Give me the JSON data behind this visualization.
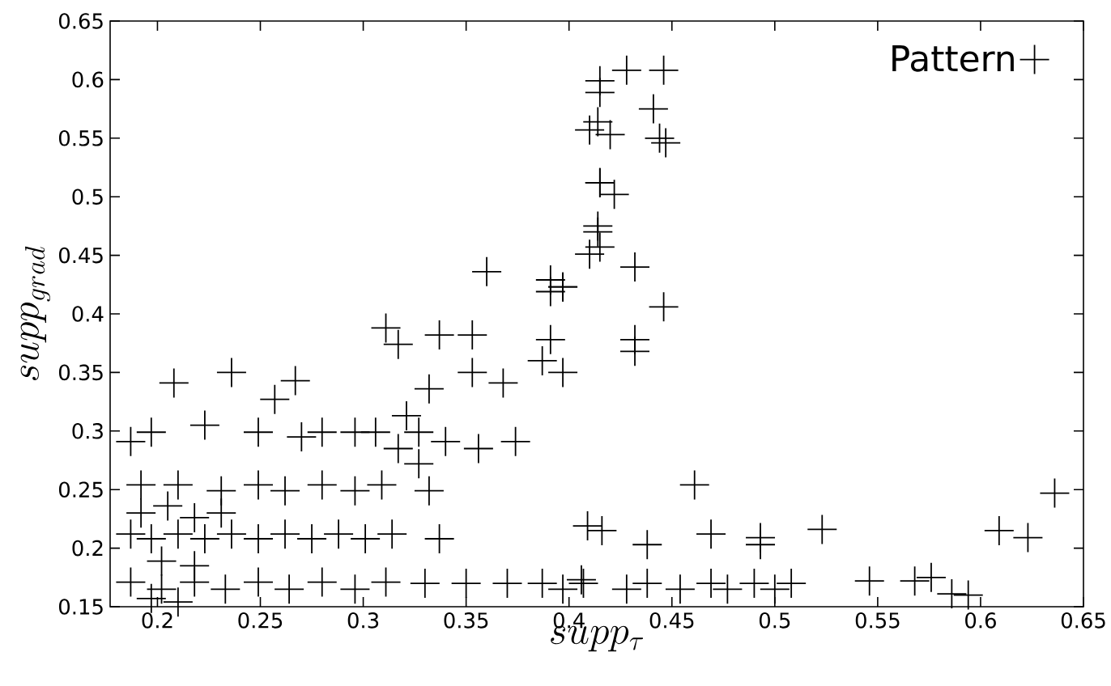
{
  "chart_data": {
    "type": "scatter",
    "xlabel": "supp_{\\tau}",
    "ylabel": "supp_{grad}",
    "xlim": [
      0.177,
      0.65
    ],
    "ylim": [
      0.15,
      0.65
    ],
    "xticks": [
      0.2,
      0.25,
      0.3,
      0.35,
      0.4,
      0.45,
      0.5,
      0.55,
      0.6,
      0.65
    ],
    "yticks": [
      0.15,
      0.2,
      0.25,
      0.3,
      0.35,
      0.4,
      0.45,
      0.5,
      0.55,
      0.6,
      0.65
    ],
    "legend": "top right",
    "marker": "cross",
    "series": [
      {
        "name": "Pattern",
        "color": "#000000",
        "x": [
          0.446,
          0.441,
          0.444,
          0.447,
          0.415,
          0.428,
          0.414,
          0.42,
          0.415,
          0.422,
          0.414,
          0.415,
          0.432,
          0.446,
          0.397,
          0.391,
          0.432,
          0.415,
          0.41,
          0.415,
          0.414,
          0.41,
          0.397,
          0.36,
          0.391,
          0.311,
          0.317,
          0.337,
          0.353,
          0.391,
          0.387,
          0.397,
          0.368,
          0.353,
          0.332,
          0.321,
          0.306,
          0.327,
          0.34,
          0.356,
          0.374,
          0.317,
          0.296,
          0.332,
          0.327,
          0.337,
          0.208,
          0.236,
          0.267,
          0.257,
          0.197,
          0.223,
          0.249,
          0.27,
          0.28,
          0.187,
          0.192,
          0.21,
          0.231,
          0.249,
          0.262,
          0.28,
          0.296,
          0.309,
          0.187,
          0.197,
          0.21,
          0.223,
          0.236,
          0.249,
          0.262,
          0.275,
          0.288,
          0.301,
          0.314,
          0.192,
          0.205,
          0.218,
          0.231,
          0.202,
          0.218,
          0.187,
          0.202,
          0.218,
          0.233,
          0.249,
          0.264,
          0.28,
          0.296,
          0.311,
          0.197,
          0.21,
          0.33,
          0.35,
          0.37,
          0.406,
          0.409,
          0.416,
          0.461,
          0.438,
          0.469,
          0.493,
          0.493,
          0.523,
          0.432,
          0.609,
          0.623,
          0.636,
          0.387,
          0.397,
          0.407,
          0.428,
          0.438,
          0.454,
          0.469,
          0.477,
          0.49,
          0.5,
          0.508,
          0.546,
          0.568,
          0.576,
          0.586,
          0.594
        ],
        "values": [
          0.608,
          0.575,
          0.55,
          0.546,
          0.599,
          0.608,
          0.564,
          0.553,
          0.512,
          0.502,
          0.475,
          0.457,
          0.44,
          0.406,
          0.423,
          0.419,
          0.378,
          0.589,
          0.557,
          0.512,
          0.47,
          0.451,
          0.423,
          0.436,
          0.429,
          0.388,
          0.374,
          0.382,
          0.382,
          0.378,
          0.36,
          0.35,
          0.341,
          0.35,
          0.336,
          0.313,
          0.299,
          0.299,
          0.291,
          0.285,
          0.291,
          0.285,
          0.299,
          0.249,
          0.272,
          0.208,
          0.341,
          0.35,
          0.343,
          0.327,
          0.299,
          0.305,
          0.299,
          0.295,
          0.299,
          0.291,
          0.254,
          0.254,
          0.249,
          0.254,
          0.249,
          0.254,
          0.249,
          0.254,
          0.212,
          0.208,
          0.212,
          0.208,
          0.212,
          0.208,
          0.212,
          0.208,
          0.212,
          0.208,
          0.212,
          0.23,
          0.236,
          0.226,
          0.23,
          0.189,
          0.185,
          0.171,
          0.165,
          0.171,
          0.165,
          0.171,
          0.165,
          0.171,
          0.165,
          0.171,
          0.157,
          0.154,
          0.17,
          0.17,
          0.17,
          0.173,
          0.219,
          0.215,
          0.254,
          0.203,
          0.212,
          0.209,
          0.203,
          0.216,
          0.368,
          0.215,
          0.209,
          0.247,
          0.17,
          0.165,
          0.17,
          0.165,
          0.17,
          0.165,
          0.17,
          0.165,
          0.17,
          0.165,
          0.17,
          0.172,
          0.172,
          0.175,
          0.161,
          0.16
        ]
      }
    ]
  }
}
